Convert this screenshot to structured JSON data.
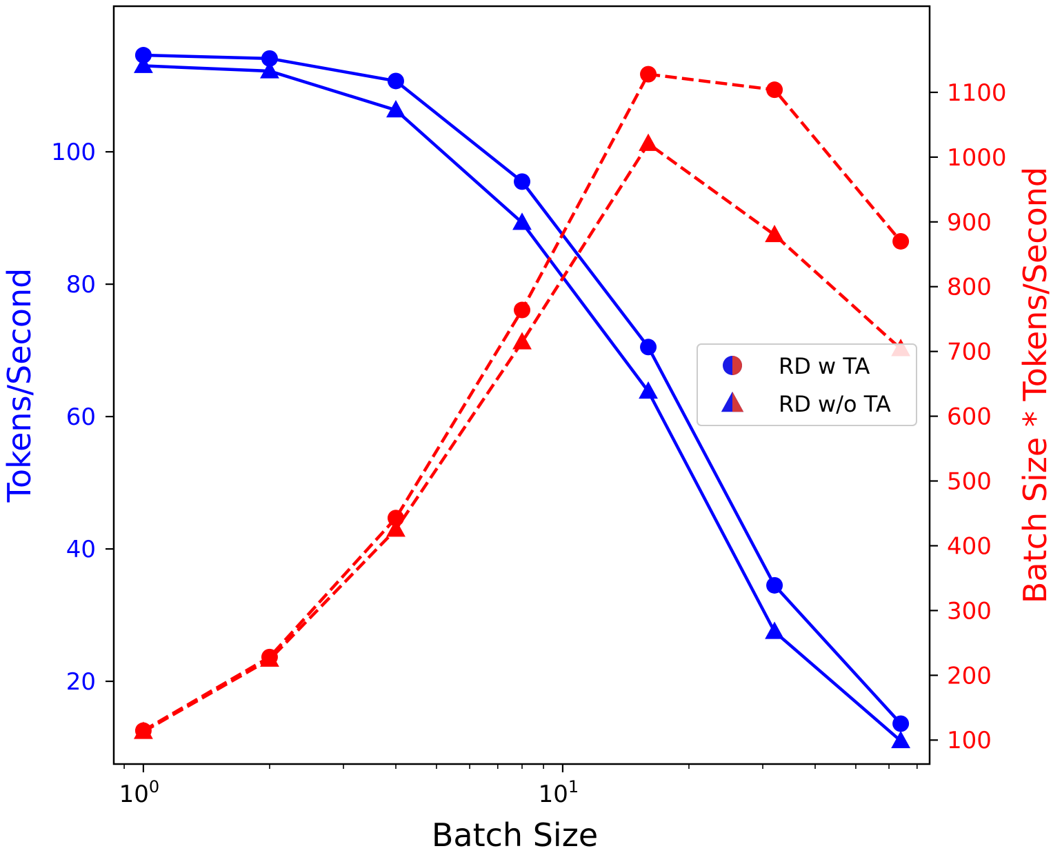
{
  "chart_data": {
    "type": "line",
    "title": "",
    "xlabel": "Batch Size",
    "xscale": "log",
    "xlim": [
      0.85,
      75
    ],
    "x": [
      1,
      2,
      4,
      8,
      16,
      32,
      64
    ],
    "x_major_ticks": [
      {
        "value": 1,
        "base": "10",
        "exp": "0"
      },
      {
        "value": 10,
        "base": "10",
        "exp": "1"
      }
    ],
    "left_axis": {
      "label": "Tokens/Second",
      "color": "#0000ff",
      "ylim": [
        7.5,
        122
      ],
      "ticks": [
        {
          "value": 20,
          "label": "20"
        },
        {
          "value": 40,
          "label": "40"
        },
        {
          "value": 60,
          "label": "60"
        },
        {
          "value": 80,
          "label": "80"
        },
        {
          "value": 100,
          "label": "100"
        }
      ]
    },
    "right_axis": {
      "label": "Batch Size * Tokens/Second",
      "color": "#ff0000",
      "ylim": [
        63,
        1233
      ],
      "ticks": [
        {
          "value": 100,
          "label": "100"
        },
        {
          "value": 200,
          "label": "200"
        },
        {
          "value": 300,
          "label": "300"
        },
        {
          "value": 400,
          "label": "400"
        },
        {
          "value": 500,
          "label": "500"
        },
        {
          "value": 600,
          "label": "600"
        },
        {
          "value": 700,
          "label": "700"
        },
        {
          "value": 800,
          "label": "800"
        },
        {
          "value": 900,
          "label": "900"
        },
        {
          "value": 1000,
          "label": "1000"
        },
        {
          "value": 1100,
          "label": "1100"
        }
      ]
    },
    "series": [
      {
        "name": "RD w TA",
        "axis": "left",
        "color": "#0000ff",
        "style": "solid",
        "marker": "circle",
        "values": [
          114.6,
          114.1,
          110.7,
          95.5,
          70.5,
          34.5,
          13.6
        ]
      },
      {
        "name": "RD w/o TA",
        "axis": "left",
        "color": "#0000ff",
        "style": "solid",
        "marker": "triangle",
        "values": [
          113.0,
          112.2,
          106.3,
          89.3,
          63.8,
          27.5,
          11.0
        ]
      },
      {
        "name": "RD w TA",
        "axis": "right",
        "color": "#ff0000",
        "style": "dashed",
        "marker": "circle",
        "values": [
          114.6,
          228.2,
          442.8,
          764.0,
          1128.0,
          1104.0,
          870.0
        ]
      },
      {
        "name": "RD w/o TA",
        "axis": "right",
        "color": "#ff0000",
        "style": "dashed",
        "marker": "triangle",
        "values": [
          113.0,
          224.4,
          425.2,
          714.4,
          1020.8,
          880.0,
          704.0
        ]
      }
    ],
    "legend": {
      "position": "center-right",
      "entries": [
        {
          "label": "RD w TA",
          "marker": "circle"
        },
        {
          "label": "RD w/o TA",
          "marker": "triangle"
        }
      ]
    }
  }
}
